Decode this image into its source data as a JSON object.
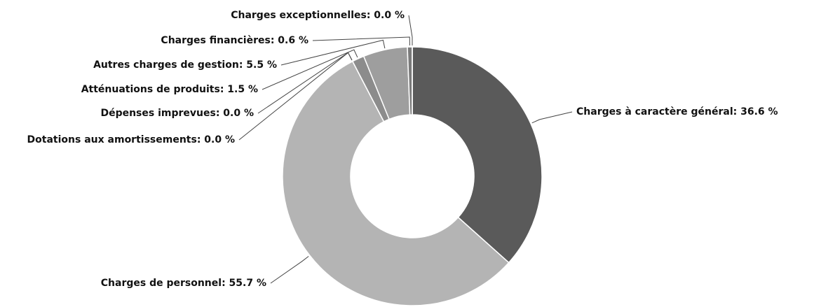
{
  "chart_data": {
    "type": "donut",
    "value_labels": [
      "Charges à caractère général: 36.6 %",
      "Charges de personnel: 55.7 %",
      "Dotations aux amortissements: 0.0 %",
      "Dépenses imprevues: 0.0 %",
      "Atténuations de produits: 1.5 %",
      "Autres charges de gestion: 5.5 %",
      "Charges financières: 0.6 %",
      "Charges exceptionnelles: 0.0 %"
    ],
    "values": [
      36.6,
      55.7,
      0.0,
      0.0,
      1.5,
      5.5,
      0.6,
      0.0
    ],
    "colors": [
      "#5a5a5a",
      "#b4b4b4",
      "#9a9a9a",
      "#9a9a9a",
      "#8c8c8c",
      "#9e9e9e",
      "#7a7a7a",
      "#7a7a7a"
    ]
  }
}
